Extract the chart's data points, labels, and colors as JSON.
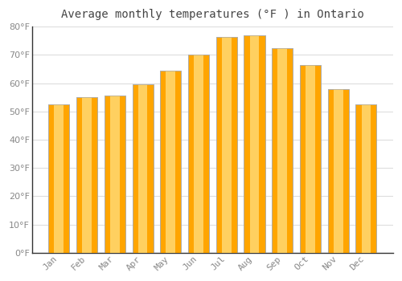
{
  "title": "Average monthly temperatures (°F ) in Ontario",
  "months": [
    "Jan",
    "Feb",
    "Mar",
    "Apr",
    "May",
    "Jun",
    "Jul",
    "Aug",
    "Sep",
    "Oct",
    "Nov",
    "Dec"
  ],
  "values": [
    52.5,
    55.0,
    55.5,
    59.5,
    64.5,
    70.0,
    76.5,
    77.0,
    72.5,
    66.5,
    58.0,
    52.5
  ],
  "bar_color": "#FFA500",
  "bar_edge_color": "#aaaaaa",
  "background_color": "#ffffff",
  "grid_color": "#dddddd",
  "ylim": [
    0,
    80
  ],
  "yticks": [
    0,
    10,
    20,
    30,
    40,
    50,
    60,
    70,
    80
  ],
  "title_fontsize": 10,
  "tick_fontsize": 8,
  "tick_color": "#888888",
  "axis_color": "#333333"
}
